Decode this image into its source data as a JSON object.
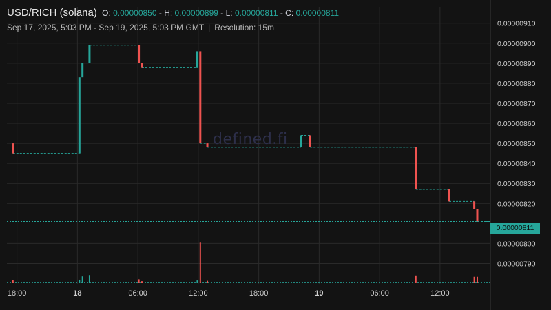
{
  "header": {
    "pair": "USD/RICH (solana)",
    "open_label": "O:",
    "open": "0.00000850",
    "high_label": "H:",
    "high": "0.00000899",
    "low_label": "L:",
    "low": "0.00000811",
    "close_label": "C:",
    "close": "0.00000811",
    "range": "Sep 17, 2025, 5:03 PM - Sep 19, 2025, 5:03 PM GMT",
    "separator": "|",
    "resolution": "Resolution: 15m"
  },
  "watermark": "defined.fi",
  "last_price_tag": "0.00000811",
  "colors": {
    "background": "#131313",
    "grid": "#2a2a2a",
    "up": "#26a69a",
    "down": "#ef5350",
    "text": "#d9d9d9"
  },
  "chart_data": {
    "type": "candlestick",
    "y_axis": {
      "range": [
        7.85e-06,
        9.13e-06
      ],
      "ticks": [
        "0.00000910",
        "0.00000900",
        "0.00000890",
        "0.00000880",
        "0.00000870",
        "0.00000860",
        "0.00000850",
        "0.00000840",
        "0.00000830",
        "0.00000820",
        "0.00000800",
        "0.00000790"
      ],
      "tick_values": [
        9.1e-06,
        9e-06,
        8.9e-06,
        8.8e-06,
        8.7e-06,
        8.6e-06,
        8.5e-06,
        8.4e-06,
        8.3e-06,
        8.2e-06,
        8e-06,
        7.9e-06
      ]
    },
    "x_axis": {
      "range": [
        17.0,
        65.0
      ],
      "ticks": [
        {
          "label": "18:00",
          "t": 18,
          "bold": false
        },
        {
          "label": "18",
          "t": 24,
          "bold": true
        },
        {
          "label": "06:00",
          "t": 30,
          "bold": false
        },
        {
          "label": "12:00",
          "t": 36,
          "bold": false
        },
        {
          "label": "18:00",
          "t": 42,
          "bold": false
        },
        {
          "label": "19",
          "t": 48,
          "bold": true
        },
        {
          "label": "06:00",
          "t": 54,
          "bold": false
        },
        {
          "label": "12:00",
          "t": 60,
          "bold": false
        }
      ]
    },
    "grid": true,
    "last_price": 8.11e-06,
    "candles": [
      {
        "t": 17.6,
        "o": 8.5e-06,
        "c": 8.45e-06
      },
      {
        "t": 24.2,
        "o": 8.45e-06,
        "c": 8.83e-06
      },
      {
        "t": 24.5,
        "o": 8.83e-06,
        "c": 8.9e-06
      },
      {
        "t": 25.2,
        "o": 8.9e-06,
        "c": 8.99e-06
      },
      {
        "t": 30.1,
        "o": 8.99e-06,
        "c": 8.9e-06
      },
      {
        "t": 30.4,
        "o": 8.9e-06,
        "c": 8.88e-06
      },
      {
        "t": 35.9,
        "o": 8.88e-06,
        "c": 8.96e-06
      },
      {
        "t": 36.2,
        "o": 8.96e-06,
        "c": 8.5e-06
      },
      {
        "t": 36.9,
        "o": 8.5e-06,
        "c": 8.48e-06
      },
      {
        "t": 46.2,
        "o": 8.48e-06,
        "c": 8.54e-06
      },
      {
        "t": 47.1,
        "o": 8.54e-06,
        "c": 8.48e-06
      },
      {
        "t": 57.6,
        "o": 8.48e-06,
        "c": 8.27e-06
      },
      {
        "t": 60.9,
        "o": 8.27e-06,
        "c": 8.21e-06
      },
      {
        "t": 63.4,
        "o": 8.21e-06,
        "c": 8.17e-06
      },
      {
        "t": 63.7,
        "o": 8.17e-06,
        "c": 8.11e-06
      }
    ],
    "flats": [
      {
        "from": 17.6,
        "to": 24.2,
        "price": 8.45e-06
      },
      {
        "from": 25.2,
        "to": 30.1,
        "price": 8.99e-06
      },
      {
        "from": 30.4,
        "to": 35.9,
        "price": 8.88e-06
      },
      {
        "from": 36.2,
        "to": 36.9,
        "price": 8.5e-06
      },
      {
        "from": 36.9,
        "to": 46.2,
        "price": 8.48e-06
      },
      {
        "from": 46.2,
        "to": 47.1,
        "price": 8.54e-06
      },
      {
        "from": 47.1,
        "to": 57.6,
        "price": 8.48e-06
      },
      {
        "from": 57.6,
        "to": 60.9,
        "price": 8.27e-06
      },
      {
        "from": 60.9,
        "to": 63.4,
        "price": 8.21e-06
      },
      {
        "from": 63.7,
        "to": 64.9,
        "price": 8.11e-06
      }
    ],
    "volume": [
      {
        "t": 17.6,
        "v": 0.15,
        "up": false
      },
      {
        "t": 24.2,
        "v": 0.18,
        "up": true
      },
      {
        "t": 24.5,
        "v": 0.35,
        "up": true
      },
      {
        "t": 25.2,
        "v": 0.42,
        "up": true
      },
      {
        "t": 30.1,
        "v": 0.2,
        "up": false
      },
      {
        "t": 30.4,
        "v": 0.1,
        "up": false
      },
      {
        "t": 35.9,
        "v": 0.14,
        "up": true
      },
      {
        "t": 36.2,
        "v": 2.1,
        "up": false
      },
      {
        "t": 36.9,
        "v": 0.12,
        "up": false
      },
      {
        "t": 57.6,
        "v": 0.4,
        "up": false
      },
      {
        "t": 63.4,
        "v": 0.33,
        "up": false
      },
      {
        "t": 63.7,
        "v": 0.33,
        "up": false
      }
    ]
  }
}
